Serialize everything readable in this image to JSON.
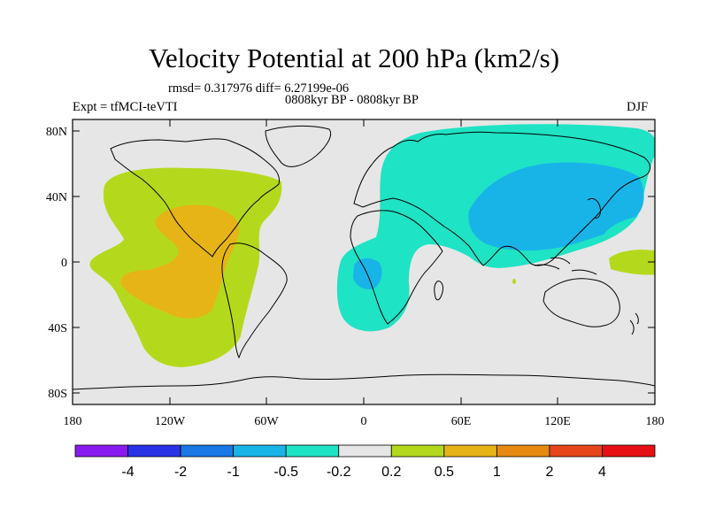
{
  "title": "Velocity Potential at 200 hPa (km2/s)",
  "stats": "rmsd= 0.317976 diff= 6.27199e-06",
  "period": "0808kyr BP - 0808kyr BP",
  "experiment": "Expt = tfMCI-teVTI",
  "season": "DJF",
  "lat_ticks": [
    "80N",
    "40N",
    "0",
    "40S",
    "80S"
  ],
  "lon_ticks": [
    "180",
    "120W",
    "60W",
    "0",
    "60E",
    "120E",
    "180"
  ],
  "colorbar": {
    "colors": [
      "#8a1bf0",
      "#2a32e6",
      "#1a78e6",
      "#18b4e8",
      "#1ee3c4",
      "#e6e6e6",
      "#b4d91c",
      "#e6b416",
      "#e68a12",
      "#e6461a",
      "#e60f14"
    ],
    "labels": [
      "-4",
      "-2",
      "-1",
      "-0.5",
      "-0.2",
      "0.2",
      "0.5",
      "1",
      "2",
      "4"
    ]
  },
  "regions": {
    "pos_weak": "#b4d91c",
    "pos_mod": "#e6b416",
    "neg_weak": "#1ee3c4",
    "neg_mod": "#18b4e8",
    "neutral": "#e6e6e6"
  }
}
